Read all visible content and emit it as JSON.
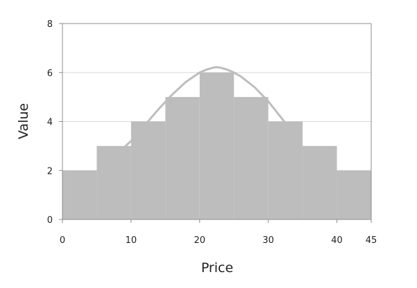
{
  "chart_data": {
    "type": "bar",
    "x_ticks": [
      "0",
      "10",
      "20",
      "30",
      "40",
      "45"
    ],
    "y_ticks": [
      "0",
      "2",
      "4",
      "6",
      "8"
    ],
    "xlabel": "Price",
    "ylabel": "Value",
    "xlim": [
      0,
      45
    ],
    "ylim": [
      0,
      8
    ],
    "grid": true,
    "bins": [
      {
        "from": 0,
        "to": 5,
        "value": 2
      },
      {
        "from": 5,
        "to": 10,
        "value": 3
      },
      {
        "from": 10,
        "to": 15,
        "value": 4
      },
      {
        "from": 15,
        "to": 20,
        "value": 5
      },
      {
        "from": 20,
        "to": 25,
        "value": 6
      },
      {
        "from": 25,
        "to": 30,
        "value": 5
      },
      {
        "from": 30,
        "to": 35,
        "value": 4
      },
      {
        "from": 35,
        "to": 40,
        "value": 3
      },
      {
        "from": 40,
        "to": 45,
        "value": 2
      }
    ],
    "curve": {
      "x": [
        9,
        10,
        12,
        14,
        16,
        18,
        20,
        21,
        22,
        22.5,
        23,
        24,
        25,
        26,
        28,
        30,
        32,
        34,
        35
      ],
      "y": [
        2.95,
        3.2,
        3.85,
        4.5,
        5.1,
        5.62,
        6.0,
        6.12,
        6.2,
        6.22,
        6.2,
        6.12,
        6.0,
        5.84,
        5.4,
        4.82,
        4.12,
        3.35,
        2.95
      ]
    },
    "colors": {
      "bar": "#bdbdbd",
      "curve": "#bdbdbd",
      "grid": "#d9d9d9",
      "axis": "#8c8c8c"
    }
  }
}
